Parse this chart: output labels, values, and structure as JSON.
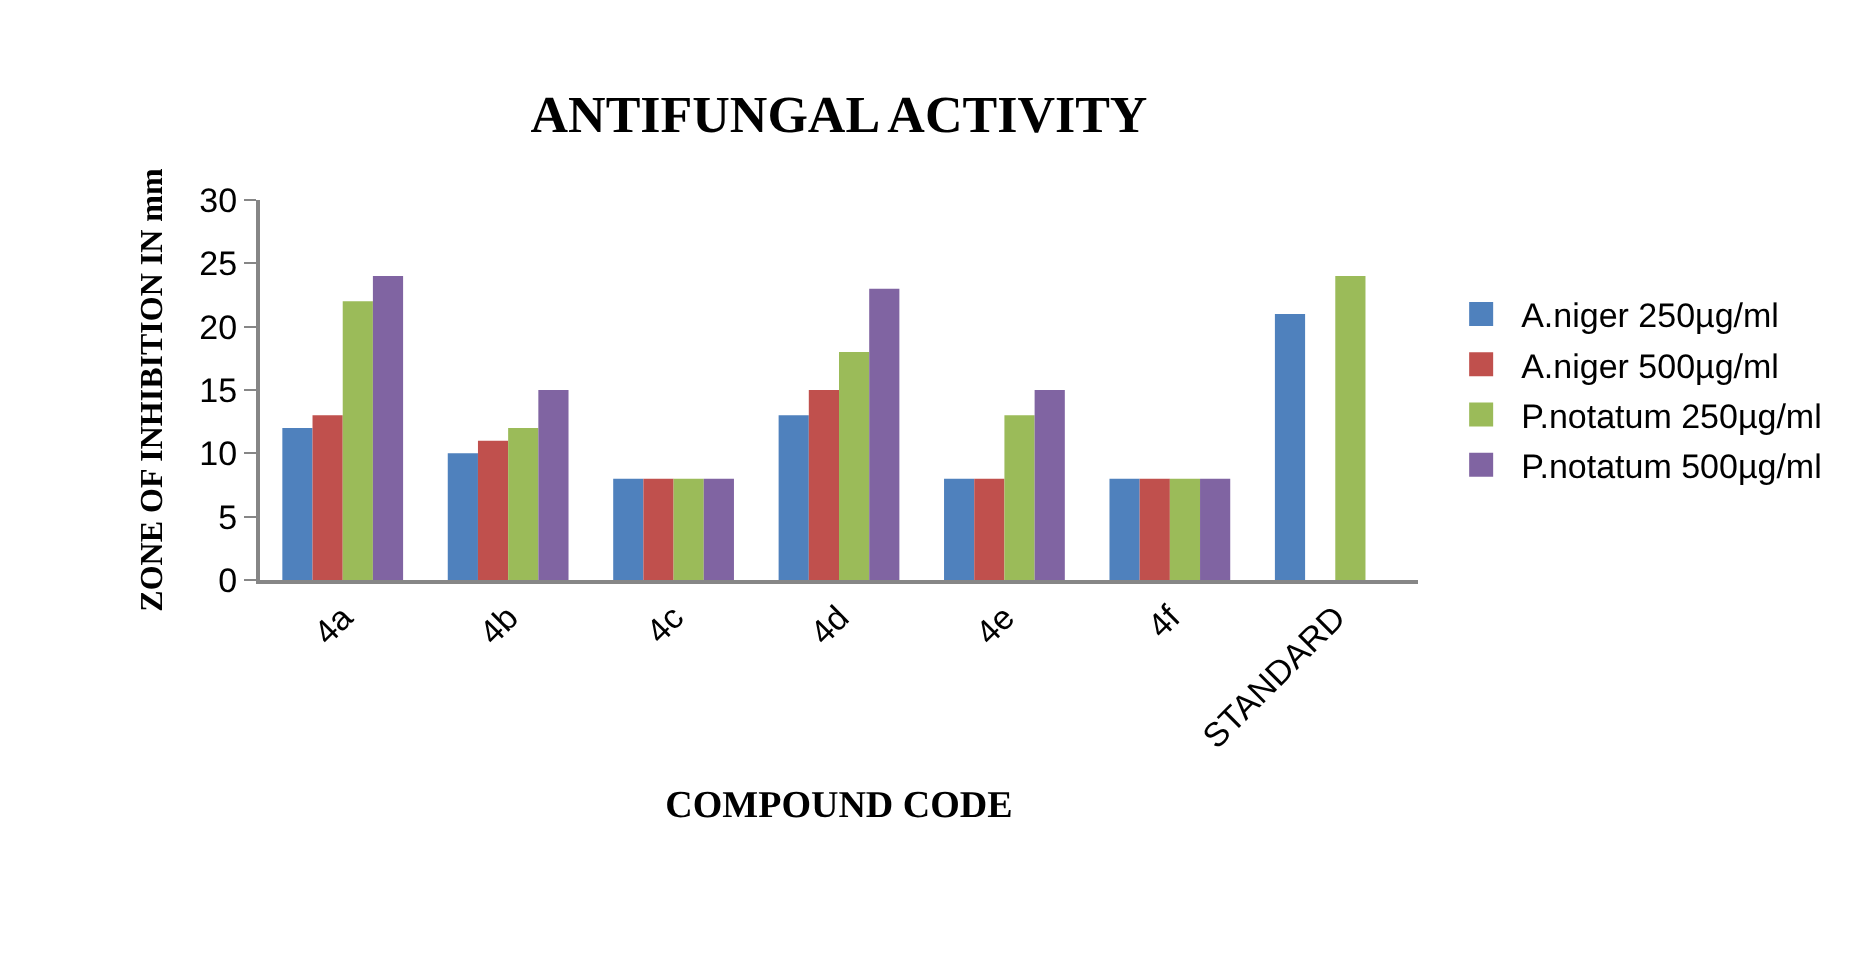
{
  "chart_data": {
    "type": "bar",
    "title": "ANTIFUNGAL ACTIVITY",
    "xlabel": "COMPOUND CODE",
    "ylabel": "ZONE OF INHIBITION IN mm",
    "categories": [
      "4a",
      "4b",
      "4c",
      "4d",
      "4e",
      "4f",
      "STANDARD"
    ],
    "series": [
      {
        "name": "A.niger 250µg/ml",
        "color": "#4f81bd",
        "values": [
          12,
          10,
          8,
          13,
          8,
          8,
          21
        ]
      },
      {
        "name": "A.niger 500µg/ml",
        "color": "#c0504d",
        "values": [
          13,
          11,
          8,
          15,
          8,
          8,
          null
        ]
      },
      {
        "name": "P.notatum 250µg/ml",
        "color": "#9bbb59",
        "values": [
          22,
          12,
          8,
          18,
          13,
          8,
          24
        ]
      },
      {
        "name": "P.notatum 500µg/ml",
        "color": "#8064a2",
        "values": [
          24,
          15,
          8,
          23,
          15,
          8,
          null
        ]
      }
    ],
    "ylim": [
      0,
      30
    ],
    "yticks": [
      0,
      5,
      10,
      15,
      20,
      25,
      30
    ],
    "grid": false,
    "legend": "right"
  }
}
